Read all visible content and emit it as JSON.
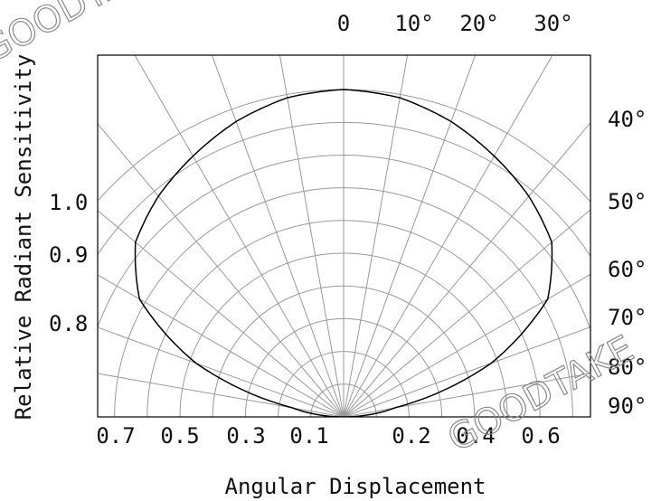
{
  "chart_data": {
    "type": "polar",
    "title": "",
    "xlabel": "Angular Displacement",
    "ylabel": "Relative Radiant Sensitivity",
    "angle_ticks": [
      "0",
      "10°",
      "20°",
      "30°",
      "40°",
      "50°",
      "60°",
      "70°",
      "80°",
      "90°"
    ],
    "left_ticks": [
      "1.0",
      "0.9",
      "0.8"
    ],
    "bottom_ticks": [
      "0.7",
      "0.5",
      "0.3",
      "0.1",
      "0.2",
      "0.4",
      "0.6"
    ],
    "grid": true,
    "series": [
      {
        "angles_deg": [
          0,
          10,
          20,
          30,
          40,
          50,
          60,
          70,
          80,
          90
        ],
        "relative_intensity": [
          1.0,
          0.99,
          0.96,
          0.92,
          0.88,
          0.83,
          0.72,
          0.48,
          0.16,
          0.0
        ]
      }
    ]
  },
  "watermark": "GOODTAKE",
  "colors": {
    "curve": "#000000",
    "grid": "#9a9a9a",
    "frame": "#000000"
  }
}
